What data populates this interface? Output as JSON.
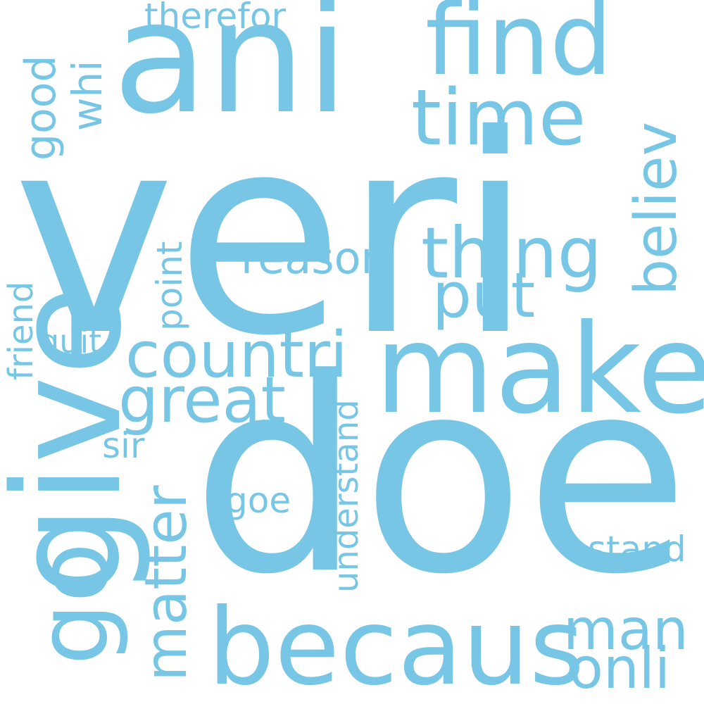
{
  "word_cloud": {
    "color": "#78c6e6",
    "background": "#ffffff",
    "words": {
      "veri": "veri",
      "doe": "doe",
      "ani": "ani",
      "find": "find",
      "time": "time",
      "make": "make",
      "becaus": "becaus",
      "give": "give",
      "go": "go",
      "thing": "thing",
      "countri": "countri",
      "great": "great",
      "put": "put",
      "reason": "reason",
      "believ": "believ",
      "matter": "matter",
      "man": "man",
      "onli": "onli",
      "stand": "stand",
      "understand": "understand",
      "goe": "goe",
      "sir": "sir",
      "quit": "quit",
      "friend": "friend",
      "point": "point",
      "good": "good",
      "whi": "whi",
      "therefor": "therefor"
    }
  }
}
